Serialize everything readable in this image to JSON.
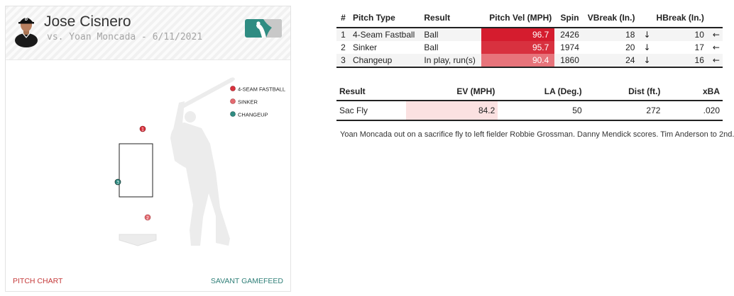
{
  "player": {
    "name": "Jose Cisnero",
    "matchup": "vs. Yoan Moncada - 6/11/2021"
  },
  "legend": [
    {
      "label": "4-SEAM FASTBALL",
      "color": "#d9323d"
    },
    {
      "label": "SINKER",
      "color": "#e36a70"
    },
    {
      "label": "CHANGEUP",
      "color": "#2f8c82"
    }
  ],
  "pitch_markers": [
    "1",
    "2",
    "3"
  ],
  "footer": {
    "left": "PITCH CHART",
    "right": "SAVANT GAMEFEED"
  },
  "pitch_table": {
    "headers": [
      "#",
      "Pitch Type",
      "Result",
      "Pitch Vel (MPH)",
      "Spin",
      "VBreak (In.)",
      "HBreak (In.)"
    ],
    "rows": [
      {
        "num": "1",
        "type": "4-Seam Fastball",
        "result": "Ball",
        "velo": "96.7",
        "velo_color": "#d51c2e",
        "spin": "2426",
        "vbreak": "18",
        "vbreak_arrow": "↓",
        "hbreak": "10",
        "hbreak_arrow": "←"
      },
      {
        "num": "2",
        "type": "Sinker",
        "result": "Ball",
        "velo": "95.7",
        "velo_color": "#d8313f",
        "spin": "1974",
        "vbreak": "20",
        "vbreak_arrow": "↓",
        "hbreak": "17",
        "hbreak_arrow": "←"
      },
      {
        "num": "3",
        "type": "Changeup",
        "result": "In play, run(s)",
        "velo": "90.4",
        "velo_color": "#e7747b",
        "spin": "1860",
        "vbreak": "24",
        "vbreak_arrow": "↓",
        "hbreak": "16",
        "hbreak_arrow": "←"
      }
    ]
  },
  "bip_table": {
    "headers": [
      "Result",
      "EV (MPH)",
      "LA (Deg.)",
      "Dist (ft.)",
      "xBA"
    ],
    "row": {
      "result": "Sac Fly",
      "ev": "84.2",
      "la": "50",
      "dist": "272",
      "xba": ".020"
    }
  },
  "description": "Yoan Moncada out on a sacrifice fly to left fielder Robbie Grossman. Danny Mendick scores. Tim Anderson to 2nd."
}
